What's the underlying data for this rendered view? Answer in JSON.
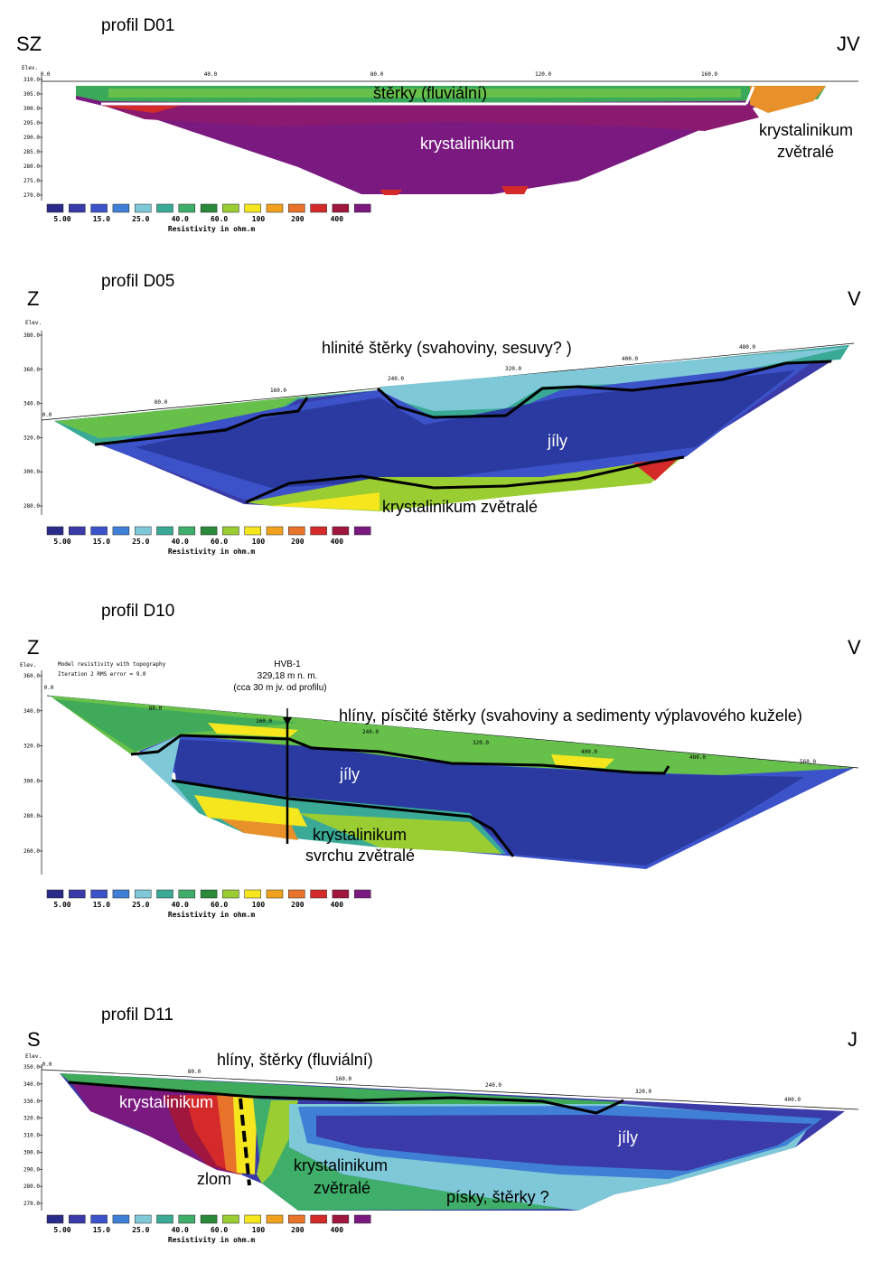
{
  "legend": {
    "values": [
      "5.00",
      "15.0",
      "25.0",
      "40.0",
      "60.0",
      "100",
      "200",
      "400"
    ],
    "title": "Resistivity in ohm.m",
    "colors": [
      "#2a2a8a",
      "#3a3aa8",
      "#3c52c8",
      "#3f7fd6",
      "#7fc8d8",
      "#3aaa96",
      "#3fae6a",
      "#2a8a3a",
      "#9acd32",
      "#f5e61e",
      "#f0a21e",
      "#e8732a",
      "#d42a2a",
      "#a0163c",
      "#7a1a80"
    ]
  },
  "profiles": [
    {
      "title": "profil D01",
      "dir_left": "SZ",
      "dir_right": "JV",
      "elev_label": "Elev.",
      "y_ticks": [
        "310.0",
        "305.0",
        "300.0",
        "295.0",
        "290.0",
        "285.0",
        "280.0",
        "275.0",
        "270.0"
      ],
      "x_ticks": [
        "0.0",
        "40.0",
        "80.0",
        "120.0",
        "160.0"
      ],
      "labels": [
        "štěrky (fluviální)",
        "krystalinikum",
        "krystalinikum",
        "zvětralé"
      ]
    },
    {
      "title": "profil D05",
      "dir_left": "Z",
      "dir_right": "V",
      "elev_label": "Elev.",
      "y_ticks": [
        "380.0",
        "360.0",
        "340.0",
        "320.0",
        "300.0",
        "280.0"
      ],
      "x_ticks": [
        "0.0",
        "80.0",
        "160.0",
        "240.0",
        "320.0",
        "400.0",
        "480.0"
      ],
      "labels": [
        "hlinité štěrky (svahoviny, sesuvy? )",
        "jíly",
        "krystalinikum zvětralé"
      ]
    },
    {
      "title": "profil D10",
      "dir_left": "Z",
      "dir_right": "V",
      "elev_label": "Elev.",
      "header_lines": [
        "Model resistivity with topography",
        "Iteration 2 RMS error = 9.0"
      ],
      "y_ticks": [
        "360.0",
        "340.0",
        "320.0",
        "300.0",
        "280.0",
        "260.0"
      ],
      "x_ticks": [
        "0.0",
        "80.0",
        "160.0",
        "240.0",
        "320.0",
        "400.0",
        "480.0",
        "560.0"
      ],
      "borehole": {
        "name": "HVB-1",
        "elev": "329,18 m n. m.",
        "note": "(cca 30 m jv. od profilu)"
      },
      "labels": [
        "hlíny, písčité štěrky (svahoviny a sedimenty výplavového kužele)",
        "jíly",
        "krystalinikum",
        "svrchu zvětralé"
      ]
    },
    {
      "title": "profil D11",
      "dir_left": "S",
      "dir_right": "J",
      "elev_label": "Elev.",
      "y_ticks": [
        "350.0",
        "340.0",
        "330.0",
        "320.0",
        "310.0",
        "300.0",
        "290.0",
        "280.0",
        "270.0"
      ],
      "x_ticks": [
        "0.0",
        "80.0",
        "160.0",
        "240.0",
        "320.0",
        "400.0"
      ],
      "labels": [
        "hlíny, štěrky (fluviální)",
        "krystalinikum",
        "jíly",
        "zlom",
        "krystalinikum",
        "zvětralé",
        "písky, štěrky ?"
      ]
    }
  ]
}
